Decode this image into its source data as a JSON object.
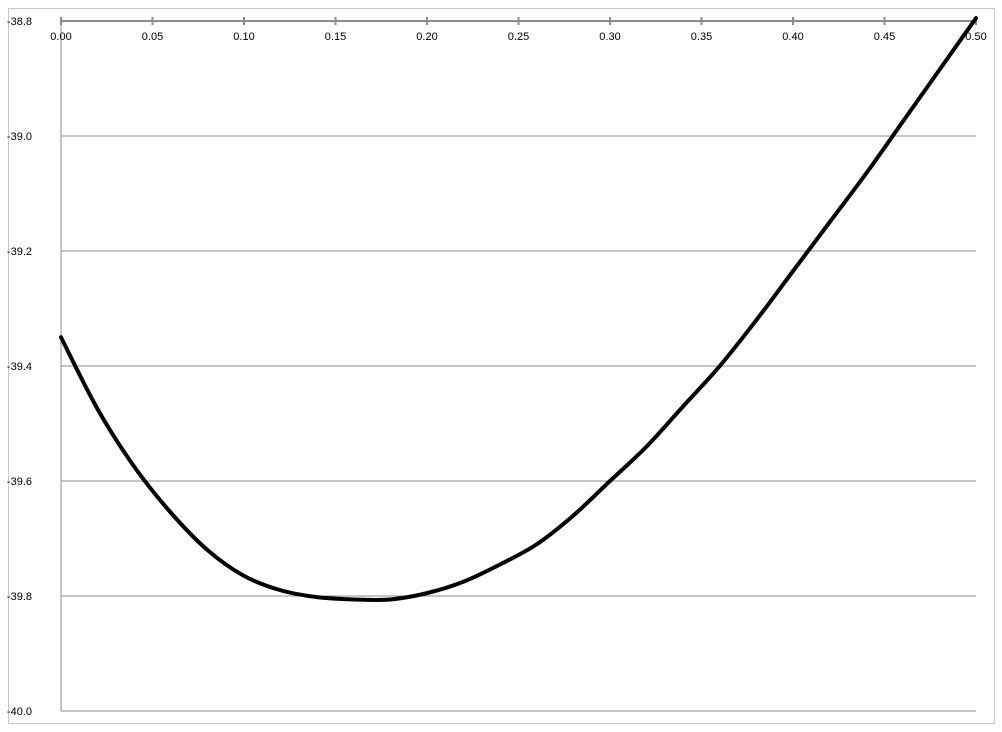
{
  "chart_data": {
    "type": "line",
    "title": "",
    "xlabel": "",
    "ylabel": "",
    "xlim": [
      0.0,
      0.5
    ],
    "ylim": [
      -40.0,
      -38.8
    ],
    "x_ticks": [
      "0.00",
      "0.05",
      "0.10",
      "0.15",
      "0.20",
      "0.25",
      "0.30",
      "0.35",
      "0.40",
      "0.45",
      "0.50"
    ],
    "y_ticks": [
      "-38.8",
      "-39.0",
      "-39.2",
      "-39.4",
      "-39.6",
      "-39.8",
      "-40.0"
    ],
    "x_axis_position": "top",
    "grid": "horizontal",
    "legend": "none",
    "series": [
      {
        "color": "#000000",
        "x": [
          0.0,
          0.02,
          0.04,
          0.06,
          0.08,
          0.1,
          0.12,
          0.14,
          0.16,
          0.18,
          0.2,
          0.22,
          0.24,
          0.26,
          0.28,
          0.3,
          0.32,
          0.34,
          0.36,
          0.38,
          0.4,
          0.42,
          0.44,
          0.46,
          0.48,
          0.5
        ],
        "y": [
          -39.35,
          -39.475,
          -39.575,
          -39.655,
          -39.72,
          -39.765,
          -39.79,
          -39.802,
          -39.806,
          -39.806,
          -39.795,
          -39.775,
          -39.745,
          -39.71,
          -39.66,
          -39.6,
          -39.54,
          -39.47,
          -39.4,
          -39.32,
          -39.235,
          -39.15,
          -39.065,
          -38.975,
          -38.885,
          -38.795
        ]
      }
    ]
  },
  "colors": {
    "axis": "#8c8c8c",
    "gridline": "#8c8c8c",
    "line": "#000000",
    "frame": "#c7c7c7"
  }
}
